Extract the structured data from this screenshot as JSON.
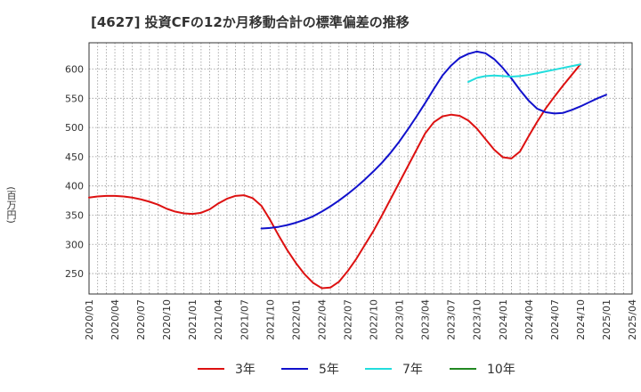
{
  "chart_data": {
    "type": "line",
    "title": "[4627]  投資CFの12か月移動合計の標準偏差の推移",
    "xlabel": "",
    "ylabel": "(百万円)",
    "x_ticks": [
      "2020/01",
      "2020/04",
      "2020/07",
      "2020/10",
      "2021/01",
      "2021/04",
      "2021/07",
      "2021/10",
      "2022/01",
      "2022/04",
      "2022/07",
      "2022/10",
      "2023/01",
      "2023/04",
      "2023/07",
      "2023/10",
      "2024/01",
      "2024/04",
      "2024/07",
      "2024/10",
      "2025/01",
      "2025/04"
    ],
    "y_ticks": [
      250,
      300,
      350,
      400,
      450,
      500,
      550,
      600
    ],
    "ylim": [
      215,
      645
    ],
    "grid": true,
    "legend_position": "bottom",
    "series": [
      {
        "name": "3年",
        "color": "#dd1111",
        "start": "2020/01",
        "values": [
          380,
          382,
          383,
          383,
          382,
          380,
          377,
          373,
          368,
          361,
          356,
          353,
          352,
          354,
          360,
          370,
          378,
          383,
          384,
          379,
          366,
          342,
          315,
          290,
          268,
          249,
          234,
          225,
          226,
          236,
          254,
          275,
          299,
          323,
          350,
          378,
          406,
          434,
          462,
          490,
          509,
          519,
          522,
          520,
          512,
          498,
          480,
          462,
          449,
          447,
          459,
          485,
          510,
          533,
          553,
          572,
          590,
          608
        ]
      },
      {
        "name": "5年",
        "color": "#1111cc",
        "start": "2021/09",
        "values": [
          327,
          328,
          330,
          333,
          337,
          342,
          348,
          356,
          365,
          375,
          386,
          398,
          411,
          425,
          440,
          457,
          476,
          497,
          519,
          542,
          566,
          589,
          606,
          619,
          626,
          630,
          627,
          617,
          602,
          584,
          564,
          546,
          532,
          526,
          524,
          525,
          530,
          536,
          543,
          550,
          556
        ]
      },
      {
        "name": "7年",
        "color": "#22dddd",
        "start": "2023/09",
        "values": [
          578,
          585,
          588,
          589,
          588,
          587,
          588,
          590,
          593,
          596,
          599,
          602,
          605,
          608
        ]
      },
      {
        "name": "10年",
        "color": "#228822",
        "start": "2024/10",
        "values": []
      }
    ]
  }
}
